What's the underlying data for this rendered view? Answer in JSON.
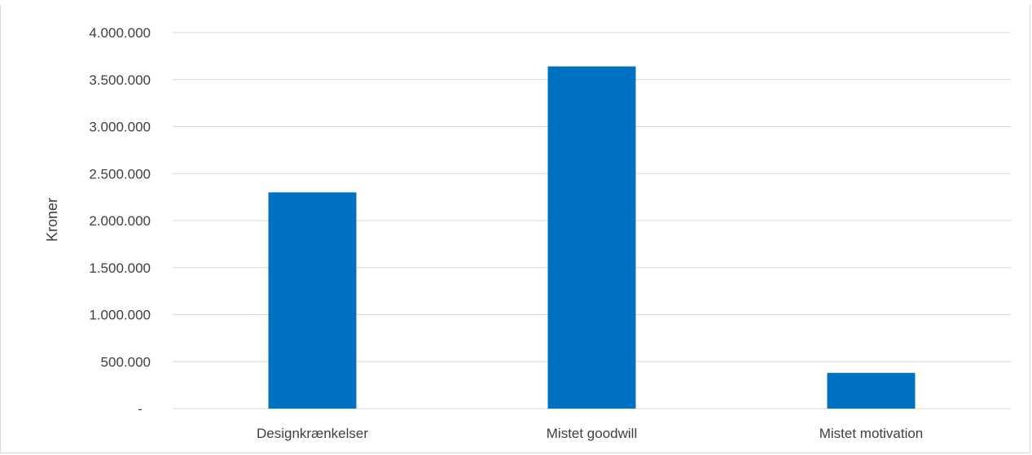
{
  "chart_data": {
    "type": "bar",
    "title": "",
    "categories": [
      "Designkrænkelser",
      "Mistet goodwill",
      "Mistet motivation"
    ],
    "values": [
      2300000,
      3640000,
      380000
    ],
    "xlabel": "",
    "ylabel": "Kroner",
    "ylim": [
      0,
      4000000
    ],
    "yticks": [
      0,
      500000,
      1000000,
      1500000,
      2000000,
      2500000,
      3000000,
      3500000,
      4000000
    ],
    "ytick_labels": [
      "-",
      "500.000",
      "1.000.000",
      "1.500.000",
      "2.000.000",
      "2.500.000",
      "3.000.000",
      "3.500.000",
      "4.000.000"
    ],
    "grid": true,
    "legend": "none",
    "colors": {
      "bar": "#0070C0",
      "grid": "#D9D9D9",
      "text": "#404040"
    }
  }
}
